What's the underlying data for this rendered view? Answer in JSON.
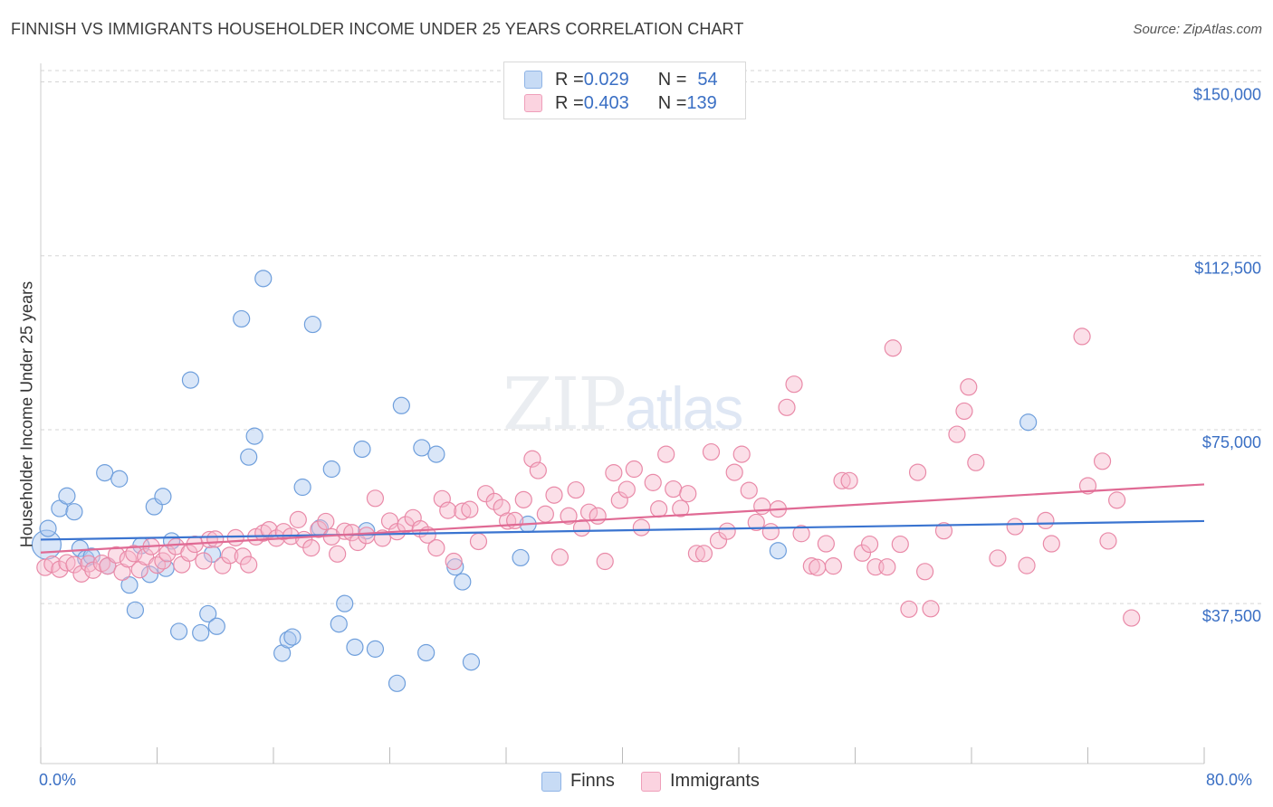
{
  "title": "FINNISH VS IMMIGRANTS HOUSEHOLDER INCOME UNDER 25 YEARS CORRELATION CHART",
  "source": "Source: ZipAtlas.com",
  "watermark": {
    "zip": "ZIP",
    "atlas": "atlas"
  },
  "legend_top": [
    {
      "r_label": "R = ",
      "r_value": "0.029",
      "n_label": "N = ",
      "n_value": "54",
      "color": "#aac8ef"
    },
    {
      "r_label": "R = ",
      "r_value": "0.403",
      "n_label": "N = ",
      "n_value": "139",
      "color": "#f6b8cb"
    }
  ],
  "legend_bottom": [
    {
      "label": "Finns",
      "color": "#aac8ef"
    },
    {
      "label": "Immigrants",
      "color": "#f6b8cb"
    }
  ],
  "chart_data": {
    "type": "scatter",
    "title": "FINNISH VS IMMIGRANTS HOUSEHOLDER INCOME UNDER 25 YEARS CORRELATION CHART",
    "xlabel": "",
    "ylabel": "Householder Income Under 25 years",
    "xlim": [
      0,
      80
    ],
    "ylim": [
      3000,
      154000
    ],
    "x_tick_labels": [
      "0.0%",
      "80.0%"
    ],
    "y_ticks": [
      37500,
      75000,
      112500,
      150000
    ],
    "y_tick_labels": [
      "$37,500",
      "$75,000",
      "$112,500",
      "$150,000"
    ],
    "grid": "horizontal dashed",
    "legend": "top-center and bottom",
    "series": [
      {
        "name": "Finns",
        "color": "#aac8ef",
        "stroke": "#6f9fdc",
        "trend": {
          "x": [
            0,
            80
          ],
          "y": [
            51300,
            55300
          ],
          "color": "#3a74d0"
        },
        "points": [
          [
            0.4,
            50200
          ],
          [
            0.5,
            53700
          ],
          [
            1.3,
            58000
          ],
          [
            1.8,
            60700
          ],
          [
            2.3,
            57300
          ],
          [
            2.7,
            49400
          ],
          [
            3.1,
            47200
          ],
          [
            3.5,
            47700
          ],
          [
            4.4,
            65700
          ],
          [
            4.6,
            45600
          ],
          [
            5.4,
            64400
          ],
          [
            6.1,
            41500
          ],
          [
            6.5,
            36100
          ],
          [
            6.9,
            50000
          ],
          [
            7.5,
            43800
          ],
          [
            7.8,
            58400
          ],
          [
            8.4,
            60600
          ],
          [
            8.6,
            45100
          ],
          [
            9.0,
            51000
          ],
          [
            9.5,
            31500
          ],
          [
            10.3,
            85700
          ],
          [
            11.0,
            31200
          ],
          [
            11.5,
            35300
          ],
          [
            11.8,
            48200
          ],
          [
            12.1,
            32600
          ],
          [
            13.8,
            98900
          ],
          [
            14.3,
            69100
          ],
          [
            14.7,
            73600
          ],
          [
            15.3,
            107600
          ],
          [
            16.6,
            26800
          ],
          [
            17.0,
            29700
          ],
          [
            17.3,
            30300
          ],
          [
            18.0,
            62600
          ],
          [
            18.7,
            97700
          ],
          [
            19.2,
            53800
          ],
          [
            20.0,
            66500
          ],
          [
            20.5,
            33100
          ],
          [
            20.9,
            37500
          ],
          [
            21.6,
            28100
          ],
          [
            22.1,
            70800
          ],
          [
            22.4,
            53200
          ],
          [
            23.0,
            27700
          ],
          [
            24.5,
            20300
          ],
          [
            24.8,
            80200
          ],
          [
            26.2,
            71100
          ],
          [
            26.5,
            26900
          ],
          [
            27.2,
            69700
          ],
          [
            28.5,
            45400
          ],
          [
            29.0,
            42200
          ],
          [
            29.6,
            24900
          ],
          [
            33.0,
            47400
          ],
          [
            33.5,
            54600
          ],
          [
            50.7,
            48900
          ],
          [
            67.9,
            76600
          ]
        ]
      },
      {
        "name": "Immigrants",
        "color": "#f6b8cb",
        "stroke": "#e98aa8",
        "trend": {
          "x": [
            0,
            80
          ],
          "y": [
            48500,
            63200
          ],
          "color": "#e06a94"
        },
        "points": [
          [
            0.3,
            45300
          ],
          [
            0.8,
            46000
          ],
          [
            1.3,
            44900
          ],
          [
            1.8,
            46300
          ],
          [
            2.3,
            45900
          ],
          [
            2.8,
            43900
          ],
          [
            3.3,
            46100
          ],
          [
            3.6,
            44700
          ],
          [
            4.2,
            46200
          ],
          [
            4.6,
            45600
          ],
          [
            5.2,
            48000
          ],
          [
            5.6,
            44300
          ],
          [
            6.0,
            47100
          ],
          [
            6.4,
            48300
          ],
          [
            6.8,
            44800
          ],
          [
            7.2,
            47600
          ],
          [
            7.6,
            49800
          ],
          [
            8.0,
            45800
          ],
          [
            8.4,
            46700
          ],
          [
            8.7,
            48300
          ],
          [
            9.3,
            49800
          ],
          [
            9.7,
            45900
          ],
          [
            10.2,
            48400
          ],
          [
            10.6,
            50300
          ],
          [
            11.2,
            46700
          ],
          [
            11.6,
            51300
          ],
          [
            12.0,
            51400
          ],
          [
            12.5,
            45700
          ],
          [
            13.0,
            47900
          ],
          [
            13.4,
            51700
          ],
          [
            13.9,
            47700
          ],
          [
            14.3,
            45900
          ],
          [
            14.8,
            51900
          ],
          [
            15.3,
            52700
          ],
          [
            15.7,
            53400
          ],
          [
            16.2,
            51600
          ],
          [
            16.7,
            53000
          ],
          [
            17.2,
            52000
          ],
          [
            17.7,
            55600
          ],
          [
            18.1,
            51300
          ],
          [
            18.6,
            49500
          ],
          [
            19.1,
            53500
          ],
          [
            19.6,
            55200
          ],
          [
            20.0,
            51900
          ],
          [
            20.4,
            48200
          ],
          [
            20.9,
            53100
          ],
          [
            21.4,
            52800
          ],
          [
            21.8,
            50700
          ],
          [
            22.4,
            52200
          ],
          [
            23.0,
            60200
          ],
          [
            23.5,
            51600
          ],
          [
            24.0,
            55300
          ],
          [
            24.5,
            53000
          ],
          [
            25.1,
            54500
          ],
          [
            25.6,
            56000
          ],
          [
            26.1,
            53600
          ],
          [
            26.6,
            52300
          ],
          [
            27.2,
            49500
          ],
          [
            27.6,
            60100
          ],
          [
            28.0,
            57600
          ],
          [
            28.4,
            46600
          ],
          [
            29.0,
            57400
          ],
          [
            29.5,
            57800
          ],
          [
            30.1,
            50900
          ],
          [
            30.6,
            61200
          ],
          [
            31.2,
            59500
          ],
          [
            31.7,
            58200
          ],
          [
            32.1,
            55300
          ],
          [
            32.6,
            55400
          ],
          [
            33.2,
            59900
          ],
          [
            33.8,
            68700
          ],
          [
            34.2,
            66200
          ],
          [
            34.7,
            56800
          ],
          [
            35.3,
            60900
          ],
          [
            35.7,
            47500
          ],
          [
            36.3,
            56400
          ],
          [
            36.8,
            62000
          ],
          [
            37.2,
            53800
          ],
          [
            37.7,
            57200
          ],
          [
            38.3,
            56400
          ],
          [
            38.8,
            46600
          ],
          [
            39.4,
            65700
          ],
          [
            39.8,
            59800
          ],
          [
            40.3,
            62100
          ],
          [
            40.8,
            66500
          ],
          [
            41.3,
            53900
          ],
          [
            42.1,
            63600
          ],
          [
            42.5,
            57900
          ],
          [
            43.0,
            69700
          ],
          [
            43.5,
            62200
          ],
          [
            44.0,
            58000
          ],
          [
            44.5,
            61200
          ],
          [
            45.1,
            48300
          ],
          [
            45.6,
            48300
          ],
          [
            46.1,
            70200
          ],
          [
            46.6,
            51100
          ],
          [
            47.2,
            53100
          ],
          [
            47.7,
            65800
          ],
          [
            48.2,
            69700
          ],
          [
            48.7,
            61900
          ],
          [
            49.2,
            55000
          ],
          [
            49.6,
            58500
          ],
          [
            50.2,
            53000
          ],
          [
            50.7,
            57900
          ],
          [
            51.3,
            79800
          ],
          [
            51.8,
            84800
          ],
          [
            52.3,
            52600
          ],
          [
            53.0,
            45600
          ],
          [
            53.4,
            45300
          ],
          [
            54.0,
            50400
          ],
          [
            54.5,
            45600
          ],
          [
            55.1,
            64000
          ],
          [
            55.6,
            64000
          ],
          [
            56.5,
            48400
          ],
          [
            57.0,
            50300
          ],
          [
            57.4,
            45400
          ],
          [
            58.2,
            45400
          ],
          [
            58.6,
            92600
          ],
          [
            59.1,
            50300
          ],
          [
            59.7,
            36300
          ],
          [
            60.3,
            65800
          ],
          [
            60.8,
            44400
          ],
          [
            61.2,
            36400
          ],
          [
            62.1,
            53200
          ],
          [
            63.0,
            74000
          ],
          [
            63.5,
            79000
          ],
          [
            63.8,
            84200
          ],
          [
            64.3,
            67900
          ],
          [
            65.8,
            47300
          ],
          [
            67.0,
            54100
          ],
          [
            67.8,
            45700
          ],
          [
            69.1,
            55400
          ],
          [
            69.5,
            50400
          ],
          [
            71.6,
            95100
          ],
          [
            72.0,
            62900
          ],
          [
            73.0,
            68200
          ],
          [
            73.4,
            51000
          ],
          [
            74.0,
            59800
          ],
          [
            75.0,
            34400
          ]
        ]
      }
    ]
  }
}
